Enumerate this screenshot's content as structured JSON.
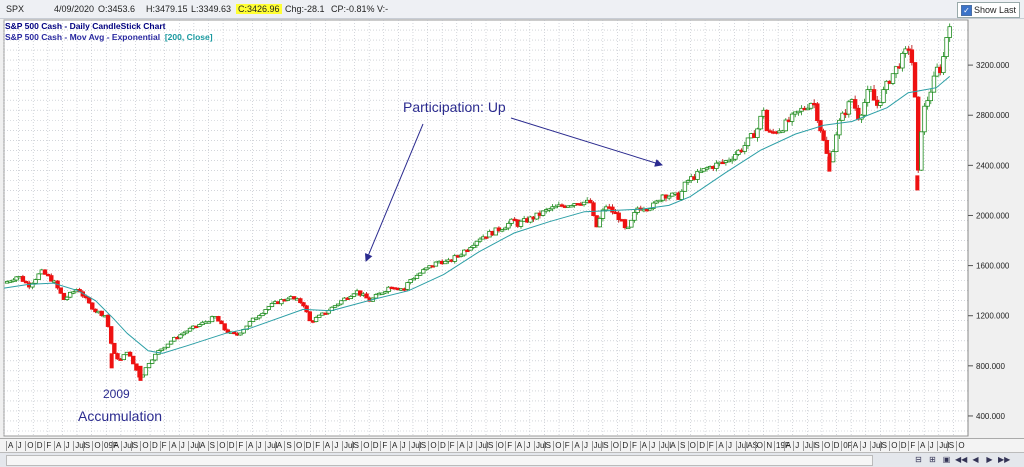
{
  "infobar": {
    "symbol": "SPX",
    "date": "4/09/2020",
    "open": "O:3453.6",
    "high": "H:3479.15",
    "low": "L:3349.63",
    "close": "C:3426.96",
    "chg": "Chg:-28.1",
    "cp": "CP:-0.81%",
    "v": "V:-",
    "show_last_label": "Show Last"
  },
  "legend": {
    "line1": "S&P 500 Cash - Daily CandleStick Chart",
    "line2": "S&P 500 Cash - Mov Avg - Exponential",
    "line2_params": "[200, Close]"
  },
  "annotations": {
    "participation": "Participation: Up",
    "year": "2009",
    "accumulation": "Accumulation"
  },
  "x_axis_labels": [
    "A",
    "J",
    "O",
    "D",
    "F",
    "A",
    "J",
    "Jul",
    "S",
    "O",
    "09F",
    "A",
    "Jul",
    "S",
    "O",
    "D",
    "F",
    "A",
    "J",
    "Jul",
    "A",
    "S",
    "O",
    "D",
    "F",
    "A",
    "J",
    "Jul",
    "A",
    "S",
    "O",
    "D",
    "F",
    "A",
    "J",
    "Jul",
    "S",
    "O",
    "D",
    "F",
    "A",
    "J",
    "Jul",
    "S",
    "O",
    "D",
    "F",
    "A",
    "J",
    "Jul",
    "S",
    "O",
    "F",
    "A",
    "J",
    "Jul",
    "S",
    "O",
    "F",
    "A",
    "J",
    "Jul",
    "S",
    "O",
    "D",
    "F",
    "A",
    "J",
    "Jul",
    "A",
    "S",
    "O",
    "D",
    "F",
    "A",
    "J",
    "Jul",
    "AS",
    "O",
    "N",
    "19F",
    "A",
    "J",
    "Jul",
    "S",
    "O",
    "D",
    "0F",
    "A",
    "J",
    "Jul",
    "S",
    "O",
    "D",
    "F",
    "A",
    "J",
    "Jul",
    "S",
    "O"
  ],
  "colors": {
    "up_body": "#ffffff",
    "up_border": "#1e8c1e",
    "down_body": "#ee1111",
    "ema_line": "#2c9fa6",
    "grid": "#b7bcc4",
    "annotation": "#2b2b8f"
  },
  "chart_data": {
    "type": "candlestick",
    "title": "S&P 500 Cash - Daily CandleStick Chart",
    "y_ticks": [
      400,
      800,
      1200,
      1600,
      2000,
      2400,
      2800,
      3200
    ],
    "y_tick_labels": [
      "400.000",
      "800.000",
      "1200.000",
      "1600.000",
      "2000.000",
      "2400.000",
      "2800.000",
      "3200.000"
    ],
    "ylim": [
      240,
      3560
    ],
    "grid": true,
    "price_path": [
      [
        2007.25,
        1460
      ],
      [
        2007.45,
        1520
      ],
      [
        2007.6,
        1440
      ],
      [
        2007.78,
        1550
      ],
      [
        2007.95,
        1480
      ],
      [
        2008.1,
        1330
      ],
      [
        2008.3,
        1420
      ],
      [
        2008.45,
        1300
      ],
      [
        2008.55,
        1240
      ],
      [
        2008.7,
        1200
      ],
      [
        2008.8,
        900
      ],
      [
        2008.9,
        840
      ],
      [
        2009.0,
        920
      ],
      [
        2009.1,
        800
      ],
      [
        2009.19,
        700
      ],
      [
        2009.3,
        820
      ],
      [
        2009.45,
        920
      ],
      [
        2009.65,
        1010
      ],
      [
        2009.85,
        1080
      ],
      [
        2010.0,
        1120
      ],
      [
        2010.25,
        1190
      ],
      [
        2010.4,
        1080
      ],
      [
        2010.55,
        1040
      ],
      [
        2010.75,
        1150
      ],
      [
        2011.0,
        1270
      ],
      [
        2011.3,
        1350
      ],
      [
        2011.5,
        1300
      ],
      [
        2011.6,
        1150
      ],
      [
        2011.75,
        1200
      ],
      [
        2012.0,
        1300
      ],
      [
        2012.25,
        1400
      ],
      [
        2012.45,
        1320
      ],
      [
        2012.75,
        1440
      ],
      [
        2012.95,
        1410
      ],
      [
        2013.0,
        1480
      ],
      [
        2013.3,
        1590
      ],
      [
        2013.45,
        1640
      ],
      [
        2013.55,
        1620
      ],
      [
        2013.75,
        1700
      ],
      [
        2014.0,
        1820
      ],
      [
        2014.25,
        1880
      ],
      [
        2014.5,
        1960
      ],
      [
        2014.55,
        1930
      ],
      [
        2014.8,
        1990
      ],
      [
        2015.0,
        2050
      ],
      [
        2015.4,
        2110
      ],
      [
        2015.6,
        2100
      ],
      [
        2015.65,
        1880
      ],
      [
        2015.8,
        2080
      ],
      [
        2016.0,
        1980
      ],
      [
        2016.1,
        1860
      ],
      [
        2016.25,
        2060
      ],
      [
        2016.5,
        2080
      ],
      [
        2016.6,
        2170
      ],
      [
        2016.85,
        2150
      ],
      [
        2016.95,
        2270
      ],
      [
        2017.25,
        2380
      ],
      [
        2017.5,
        2430
      ],
      [
        2017.75,
        2540
      ],
      [
        2017.95,
        2680
      ],
      [
        2018.05,
        2860
      ],
      [
        2018.1,
        2640
      ],
      [
        2018.3,
        2700
      ],
      [
        2018.6,
        2850
      ],
      [
        2018.75,
        2920
      ],
      [
        2018.85,
        2700
      ],
      [
        2018.98,
        2400
      ],
      [
        2019.1,
        2720
      ],
      [
        2019.3,
        2930
      ],
      [
        2019.4,
        2780
      ],
      [
        2019.55,
        3010
      ],
      [
        2019.65,
        2870
      ],
      [
        2019.85,
        3100
      ],
      [
        2020.1,
        3330
      ],
      [
        2020.13,
        3380
      ],
      [
        2020.2,
        2900
      ],
      [
        2020.23,
        2240
      ],
      [
        2020.3,
        2800
      ],
      [
        2020.45,
        3050
      ],
      [
        2020.53,
        3200
      ],
      [
        2020.57,
        3150
      ],
      [
        2020.65,
        3450
      ],
      [
        2020.69,
        3550
      ]
    ],
    "ema200_path": [
      [
        2007.25,
        1420
      ],
      [
        2007.6,
        1450
      ],
      [
        2007.95,
        1460
      ],
      [
        2008.3,
        1400
      ],
      [
        2008.55,
        1320
      ],
      [
        2008.8,
        1180
      ],
      [
        2009.0,
        1060
      ],
      [
        2009.3,
        920
      ],
      [
        2009.5,
        900
      ],
      [
        2009.85,
        960
      ],
      [
        2010.4,
        1060
      ],
      [
        2010.75,
        1100
      ],
      [
        2011.5,
        1250
      ],
      [
        2011.9,
        1240
      ],
      [
        2012.5,
        1330
      ],
      [
        2013.0,
        1400
      ],
      [
        2013.5,
        1530
      ],
      [
        2014.0,
        1710
      ],
      [
        2014.5,
        1860
      ],
      [
        2015.0,
        1950
      ],
      [
        2015.5,
        2030
      ],
      [
        2015.9,
        2040
      ],
      [
        2016.3,
        2050
      ],
      [
        2016.7,
        2080
      ],
      [
        2017.0,
        2150
      ],
      [
        2017.5,
        2340
      ],
      [
        2018.0,
        2520
      ],
      [
        2018.5,
        2650
      ],
      [
        2018.9,
        2720
      ],
      [
        2019.3,
        2750
      ],
      [
        2019.8,
        2860
      ],
      [
        2020.1,
        2980
      ],
      [
        2020.3,
        3000
      ],
      [
        2020.5,
        3020
      ],
      [
        2020.69,
        3110
      ]
    ],
    "xlim": [
      2007.25,
      2020.95
    ],
    "crash_points": [
      [
        2008.78,
        780
      ],
      [
        2009.19,
        680
      ],
      [
        2018.98,
        2350
      ],
      [
        2020.23,
        2200
      ]
    ]
  }
}
